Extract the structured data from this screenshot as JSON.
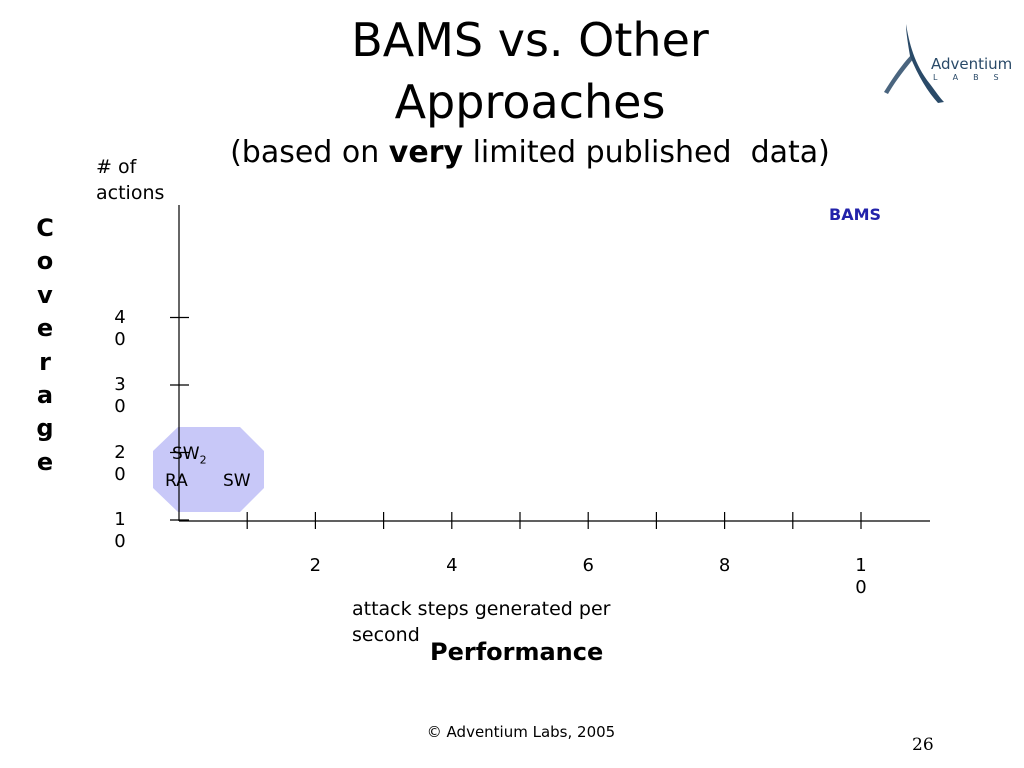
{
  "title": {
    "line1": "BAMS vs. Other",
    "line2": "Approaches",
    "subtitle_prefix": "(based on ",
    "subtitle_emphasis": "very",
    "subtitle_suffix": " limited published  data)"
  },
  "logo": {
    "word": "Adventium",
    "sub": "LABS"
  },
  "y_axis": {
    "units": "# of\nactions",
    "label": "Coverage",
    "ticks": [
      {
        "value": 40,
        "digits": [
          "4",
          "0"
        ]
      },
      {
        "value": 30,
        "digits": [
          "3",
          "0"
        ]
      },
      {
        "value": 20,
        "digits": [
          "2",
          "0"
        ]
      },
      {
        "value": 10,
        "digits": [
          "1",
          "0"
        ]
      }
    ]
  },
  "x_axis": {
    "units": "attack steps generated per second",
    "label": "Performance",
    "ticks": [
      {
        "value": 2,
        "digits": [
          "2"
        ]
      },
      {
        "value": 4,
        "digits": [
          "4"
        ]
      },
      {
        "value": 6,
        "digits": [
          "6"
        ]
      },
      {
        "value": 8,
        "digits": [
          "8"
        ]
      },
      {
        "value": 10,
        "digits": [
          "1",
          "0"
        ]
      }
    ]
  },
  "points": {
    "bams": "BAMS",
    "sw2_base": "SW",
    "sw2_sub": "2",
    "ra": "RA",
    "sw": "SW"
  },
  "colors": {
    "region_fill": "#c8c8f8",
    "bams_text": "#2222aa",
    "logo": "#2a4a68"
  },
  "footer": {
    "copyright": "© Adventium Labs, 2005",
    "slide_number": "26"
  }
}
